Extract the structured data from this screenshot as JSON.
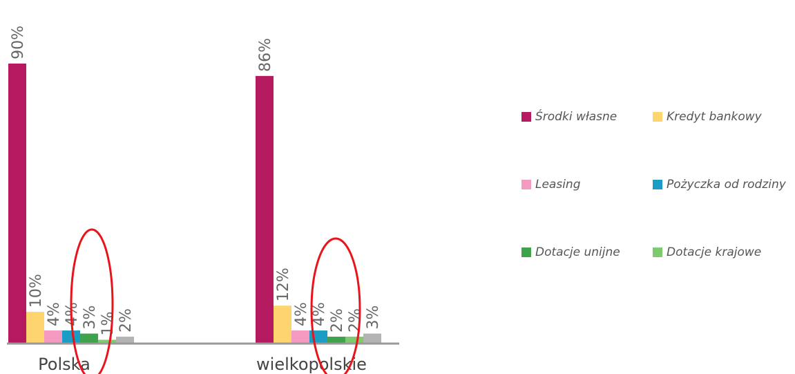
{
  "chart_data": {
    "type": "bar",
    "title": "",
    "xlabel": "",
    "ylabel": "",
    "categories": [
      "Polska",
      "wielkopolskie"
    ],
    "ylim": [
      0,
      100
    ],
    "grid": false,
    "legend_position": "right",
    "series": [
      {
        "name": "Środki własne",
        "color": "#B5195F",
        "values": [
          90,
          86
        ],
        "labels": [
          "90%",
          "86%"
        ]
      },
      {
        "name": "Kredyt bankowy",
        "color": "#FDD46E",
        "values": [
          10,
          12
        ],
        "labels": [
          "10%",
          "12%"
        ]
      },
      {
        "name": "Leasing",
        "color": "#F49AC1",
        "values": [
          4,
          4
        ],
        "labels": [
          "4%",
          "4%"
        ]
      },
      {
        "name": "Pożyczka od rodziny",
        "color": "#1A9CC4",
        "values": [
          4,
          4
        ],
        "labels": [
          "4%",
          "4%"
        ]
      },
      {
        "name": "Dotacje unijne",
        "color": "#3FA34D",
        "values": [
          3,
          2
        ],
        "labels": [
          "3%",
          "2%"
        ]
      },
      {
        "name": "Dotacje krajowe",
        "color": "#7DCB6E",
        "values": [
          1,
          2
        ],
        "labels": [
          "1%",
          "2%"
        ]
      },
      {
        "name": "",
        "color": "#B3B3B3",
        "values": [
          2,
          3
        ],
        "labels": [
          "2%",
          "3%"
        ]
      }
    ],
    "annotation_color": "#E8141B"
  }
}
